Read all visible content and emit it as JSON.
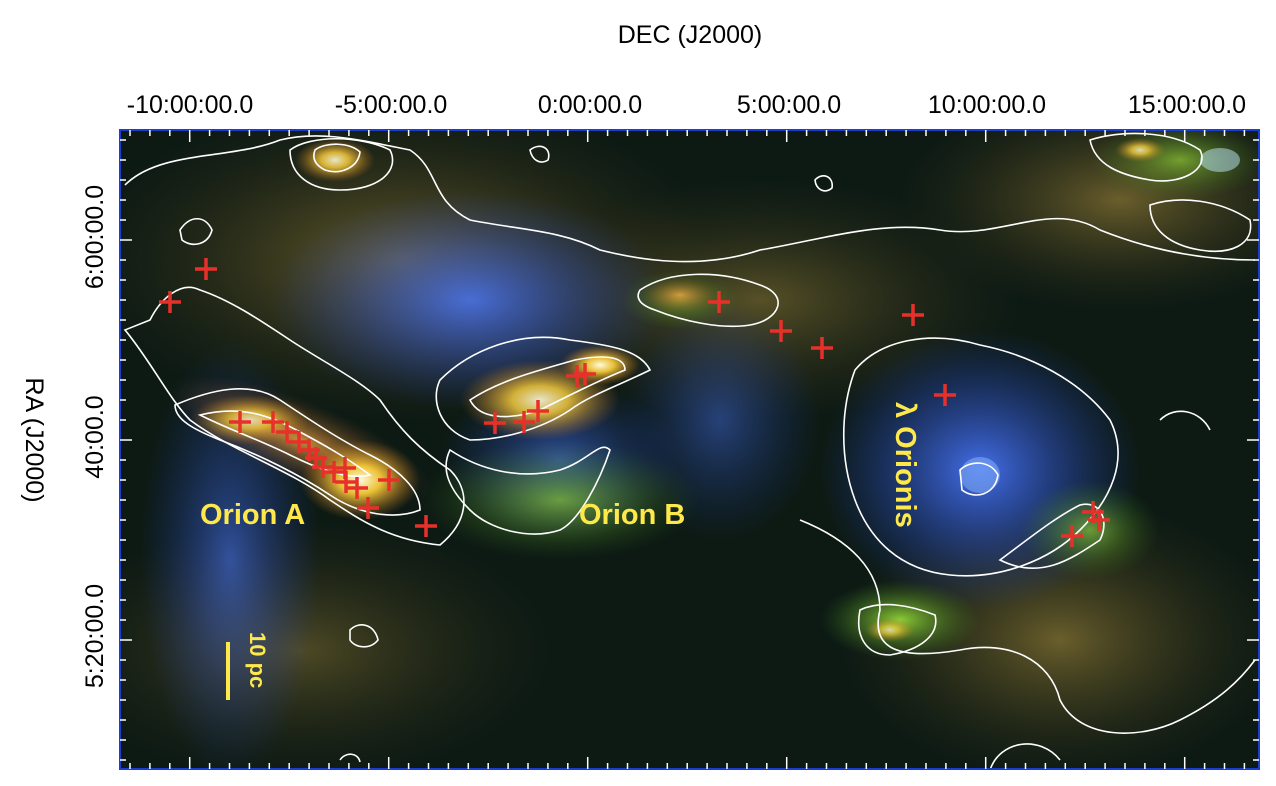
{
  "axes": {
    "top_title": "DEC (J2000)",
    "left_title": "RA (J2000)",
    "top_ticks": [
      "-10:00:00.0",
      "-5:00:00.0",
      "0:00:00.0",
      "5:00:00.0",
      "10:00:00.0",
      "15:00:00.0"
    ],
    "left_ticks": [
      "6:00:00.0",
      "40:00.0",
      "5:20:00.0"
    ]
  },
  "labels": {
    "orion_a": "Orion A",
    "orion_b": "Orion B",
    "lambda_orionis": "λ Orionis",
    "scale_bar": "10 pc"
  },
  "colors": {
    "frame": "#1a3fd0",
    "contour": "#ffffff",
    "marker": "#e8302a",
    "label": "#ffe94a"
  },
  "marker_count": 36
}
